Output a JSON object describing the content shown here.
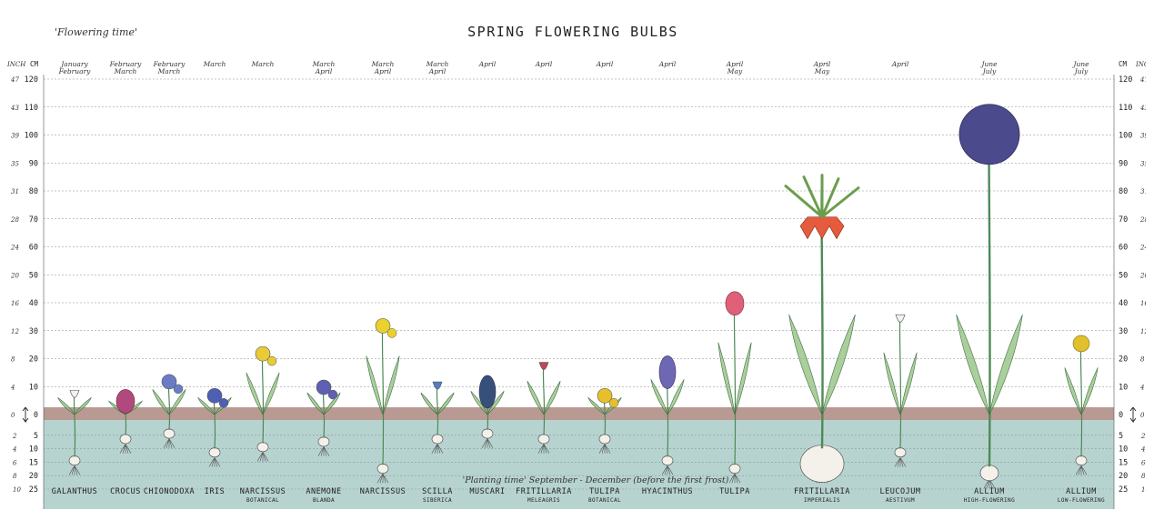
{
  "chart_data": {
    "type": "bar",
    "title": "SPRING FLOWERING BULBS",
    "subtitle": "'Flowering time'",
    "planting_note": "'Planting time' September - December (before the first frost)",
    "left_unit_inch": "INCH",
    "left_unit_cm": "CM",
    "right_unit_cm": "CM",
    "right_unit_inch": "INCH",
    "height_ticks_cm": [
      "120",
      "110",
      "100",
      "90",
      "80",
      "70",
      "60",
      "50",
      "40",
      "30",
      "20",
      "10",
      "0"
    ],
    "height_ticks_inch": [
      "47",
      "43",
      "39",
      "35",
      "31",
      "28",
      "24",
      "20",
      "16",
      "12",
      "8",
      "4",
      "0"
    ],
    "depth_ticks_cm": [
      "5",
      "10",
      "15",
      "20",
      "25"
    ],
    "depth_ticks_inch": [
      "2",
      "4",
      "6",
      "8",
      "10"
    ],
    "ylim_cm": [
      -25,
      120
    ],
    "grid": true,
    "colors": {
      "soil_top": "#b89a92",
      "soil": "#b7d3d0",
      "stem": "#4e8a55",
      "leaf": "#8dbf7a",
      "grid": "#8a8a8a"
    },
    "plants": [
      {
        "name": "GALANTHUS",
        "sub": "",
        "flower1": "January",
        "flower2": "February",
        "height_cm": 10,
        "depth_cm": 15,
        "flower_color": "#f1f1f1",
        "flower_style": "bell"
      },
      {
        "name": "CROCUS",
        "sub": "",
        "flower1": "February",
        "flower2": "March",
        "height_cm": 8,
        "depth_cm": 7,
        "flower_color": "#b2497e",
        "flower_style": "cup"
      },
      {
        "name": "CHIONODOXA",
        "sub": "",
        "flower1": "February",
        "flower2": "March",
        "height_cm": 15,
        "depth_cm": 5,
        "flower_color": "#6a7cc4",
        "flower_style": "stars"
      },
      {
        "name": "IRIS",
        "sub": "",
        "flower1": "March",
        "flower2": "",
        "height_cm": 10,
        "depth_cm": 12,
        "flower_color": "#4f5fb5",
        "flower_style": "iris"
      },
      {
        "name": "NARCISSUS",
        "sub": "BOTANICAL",
        "flower1": "March",
        "flower2": "",
        "height_cm": 25,
        "depth_cm": 10,
        "flower_color": "#e8cb36",
        "flower_style": "trumpet"
      },
      {
        "name": "ANEMONE",
        "sub": "BLANDA",
        "flower1": "March",
        "flower2": "April",
        "height_cm": 13,
        "depth_cm": 8,
        "flower_color": "#5f5fb4",
        "flower_style": "daisy"
      },
      {
        "name": "NARCISSUS",
        "sub": "",
        "flower1": "March",
        "flower2": "April",
        "height_cm": 35,
        "depth_cm": 18,
        "flower_color": "#ebd12c",
        "flower_style": "trumpet"
      },
      {
        "name": "SCILLA",
        "sub": "SIBERICA",
        "flower1": "March",
        "flower2": "April",
        "height_cm": 13,
        "depth_cm": 7,
        "flower_color": "#4f7fc4",
        "flower_style": "bell"
      },
      {
        "name": "MUSCARI",
        "sub": "",
        "flower1": "April",
        "flower2": "",
        "height_cm": 14,
        "depth_cm": 5,
        "flower_color": "#36507a",
        "flower_style": "spike"
      },
      {
        "name": "FRITILLARIA",
        "sub": "MELEAGRIS",
        "flower1": "April",
        "flower2": "",
        "height_cm": 20,
        "depth_cm": 7,
        "flower_color": "#c0465c",
        "flower_style": "bell"
      },
      {
        "name": "TULIPA",
        "sub": "BOTANICAL",
        "flower1": "April",
        "flower2": "",
        "height_cm": 10,
        "depth_cm": 7,
        "flower_color": "#e6c02c",
        "flower_style": "stars"
      },
      {
        "name": "HYACINTHUS",
        "sub": "",
        "flower1": "April",
        "flower2": "",
        "height_cm": 21,
        "depth_cm": 15,
        "flower_color": "#6e68b4",
        "flower_style": "spike"
      },
      {
        "name": "TULIPA",
        "sub": "",
        "flower1": "April",
        "flower2": "May",
        "height_cm": 43,
        "depth_cm": 18,
        "flower_color": "#e0607a",
        "flower_style": "cup"
      },
      {
        "name": "FRITILLARIA",
        "sub": "IMPERIALIS",
        "flower1": "April",
        "flower2": "May",
        "height_cm": 85,
        "depth_cm": 18,
        "flower_color": "#e65b3c",
        "flower_style": "crown"
      },
      {
        "name": "LEUCOJUM",
        "sub": "AESTIVUM",
        "flower1": "April",
        "flower2": "",
        "height_cm": 37,
        "depth_cm": 12,
        "flower_color": "#f2f2f2",
        "flower_style": "bell"
      },
      {
        "name": "ALLIUM",
        "sub": "HIGH-FLOWERING",
        "flower1": "June",
        "flower2": "July",
        "height_cm": 110,
        "depth_cm": 20,
        "flower_color": "#4a4a8c",
        "flower_style": "globe"
      },
      {
        "name": "ALLIUM",
        "sub": "LOW-FLOWERING",
        "flower1": "June",
        "flower2": "July",
        "height_cm": 28,
        "depth_cm": 15,
        "flower_color": "#e0c02c",
        "flower_style": "globe-small"
      }
    ]
  }
}
